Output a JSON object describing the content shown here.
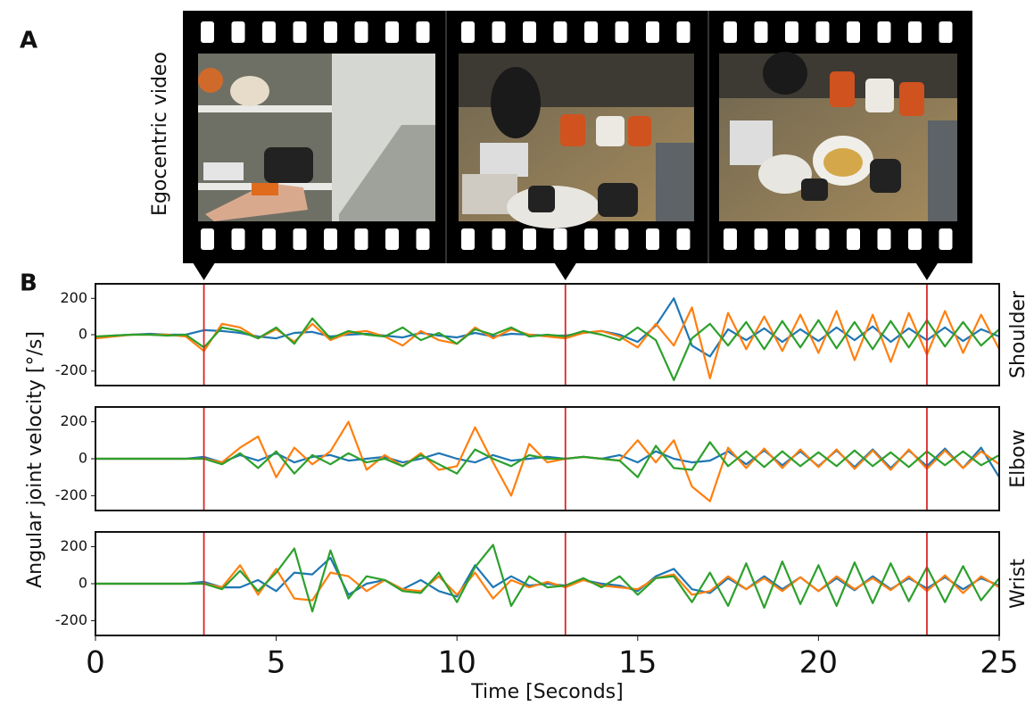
{
  "panel_labels": [
    "A",
    "B"
  ],
  "video_label": "Egocentric video",
  "ylabel": "Angular joint velocity [°/s]",
  "frame_times": [
    3,
    13,
    23
  ],
  "chart_data": [
    {
      "type": "line",
      "label": "Shoulder",
      "xlim": [
        0,
        25
      ],
      "ylim": [
        -280,
        280
      ],
      "yticks": [
        -200,
        0,
        200
      ],
      "x": [
        0,
        0.5,
        1,
        1.5,
        2,
        2.5,
        3,
        3.5,
        4,
        4.5,
        5,
        5.5,
        6,
        6.5,
        7,
        7.5,
        8,
        8.5,
        9,
        9.5,
        10,
        10.5,
        11,
        11.5,
        12,
        12.5,
        13,
        13.5,
        14,
        14.5,
        15,
        15.5,
        16,
        16.5,
        17,
        17.5,
        18,
        18.5,
        19,
        19.5,
        20,
        20.5,
        21,
        21.5,
        22,
        22.5,
        23,
        23.5,
        24,
        24.5,
        25
      ],
      "series": [
        {
          "color": "#1f77b4",
          "values": [
            -15,
            -5,
            0,
            5,
            0,
            0,
            25,
            20,
            10,
            -10,
            -20,
            10,
            15,
            -10,
            0,
            5,
            -5,
            -15,
            10,
            -5,
            -15,
            10,
            -10,
            5,
            0,
            -5,
            -5,
            10,
            20,
            0,
            -40,
            50,
            200,
            -60,
            -120,
            30,
            -30,
            35,
            -40,
            30,
            -35,
            40,
            -30,
            45,
            -40,
            35,
            -30,
            40,
            -35,
            30,
            -10
          ]
        },
        {
          "color": "#ff7f0e",
          "values": [
            -20,
            -10,
            0,
            0,
            0,
            -10,
            -90,
            60,
            40,
            -20,
            30,
            -40,
            60,
            -30,
            10,
            20,
            -10,
            -60,
            20,
            -30,
            -50,
            40,
            -20,
            30,
            0,
            -10,
            -20,
            10,
            20,
            -10,
            -70,
            60,
            -60,
            150,
            -240,
            120,
            -80,
            100,
            -90,
            110,
            -100,
            130,
            -140,
            110,
            -150,
            120,
            -110,
            130,
            -100,
            110,
            -80
          ]
        },
        {
          "color": "#2ca02c",
          "values": [
            -10,
            -5,
            0,
            0,
            -5,
            0,
            -70,
            40,
            20,
            -20,
            40,
            -50,
            90,
            -20,
            20,
            0,
            -10,
            40,
            -30,
            10,
            -50,
            30,
            0,
            40,
            -10,
            0,
            -10,
            20,
            0,
            -30,
            40,
            -30,
            -250,
            -20,
            60,
            -60,
            70,
            -80,
            75,
            -70,
            80,
            -75,
            70,
            -80,
            75,
            -70,
            80,
            -65,
            70,
            -60,
            30
          ]
        }
      ]
    },
    {
      "type": "line",
      "label": "Elbow",
      "xlim": [
        0,
        25
      ],
      "ylim": [
        -280,
        280
      ],
      "yticks": [
        -200,
        0,
        200
      ],
      "x": [
        0,
        0.5,
        1,
        1.5,
        2,
        2.5,
        3,
        3.5,
        4,
        4.5,
        5,
        5.5,
        6,
        6.5,
        7,
        7.5,
        8,
        8.5,
        9,
        9.5,
        10,
        10.5,
        11,
        11.5,
        12,
        12.5,
        13,
        13.5,
        14,
        14.5,
        15,
        15.5,
        16,
        16.5,
        17,
        17.5,
        18,
        18.5,
        19,
        19.5,
        20,
        20.5,
        21,
        21.5,
        22,
        22.5,
        23,
        23.5,
        24,
        24.5,
        25
      ],
      "series": [
        {
          "color": "#1f77b4",
          "values": [
            0,
            0,
            0,
            0,
            0,
            0,
            10,
            -20,
            20,
            -10,
            30,
            -20,
            10,
            20,
            -10,
            0,
            10,
            -20,
            0,
            30,
            0,
            -20,
            20,
            -10,
            0,
            10,
            0,
            10,
            0,
            20,
            -20,
            40,
            0,
            -20,
            -10,
            40,
            -30,
            45,
            -35,
            40,
            -40,
            45,
            -45,
            50,
            -50,
            45,
            -40,
            55,
            -50,
            60,
            -100
          ]
        },
        {
          "color": "#ff7f0e",
          "values": [
            0,
            0,
            0,
            0,
            0,
            0,
            0,
            -20,
            60,
            120,
            -100,
            60,
            -30,
            40,
            200,
            -60,
            20,
            -40,
            30,
            -60,
            -40,
            170,
            -20,
            -200,
            80,
            -20,
            0,
            10,
            0,
            -10,
            100,
            -20,
            100,
            -150,
            -230,
            60,
            -50,
            55,
            -50,
            50,
            -45,
            50,
            -55,
            45,
            -60,
            50,
            -55,
            45,
            -50,
            40,
            -30
          ]
        },
        {
          "color": "#2ca02c",
          "values": [
            0,
            0,
            0,
            0,
            0,
            0,
            0,
            -30,
            30,
            -50,
            40,
            -80,
            20,
            -30,
            30,
            -20,
            0,
            -40,
            20,
            -30,
            -80,
            50,
            0,
            -40,
            20,
            0,
            0,
            10,
            0,
            -10,
            -100,
            70,
            -50,
            -60,
            90,
            -40,
            40,
            -45,
            40,
            -40,
            35,
            -40,
            45,
            -40,
            35,
            -45,
            40,
            -35,
            40,
            -35,
            20
          ]
        }
      ]
    },
    {
      "type": "line",
      "label": "Wrist",
      "xlabel": "Time [Seconds]",
      "xlim": [
        0,
        25
      ],
      "ylim": [
        -280,
        280
      ],
      "yticks": [
        -200,
        0,
        200
      ],
      "xticks": [
        0,
        5,
        10,
        15,
        20,
        25
      ],
      "x": [
        0,
        0.5,
        1,
        1.5,
        2,
        2.5,
        3,
        3.5,
        4,
        4.5,
        5,
        5.5,
        6,
        6.5,
        7,
        7.5,
        8,
        8.5,
        9,
        9.5,
        10,
        10.5,
        11,
        11.5,
        12,
        12.5,
        13,
        13.5,
        14,
        14.5,
        15,
        15.5,
        16,
        16.5,
        17,
        17.5,
        18,
        18.5,
        19,
        19.5,
        20,
        20.5,
        21,
        21.5,
        22,
        22.5,
        23,
        23.5,
        24,
        24.5,
        25
      ],
      "series": [
        {
          "color": "#1f77b4",
          "values": [
            0,
            0,
            0,
            0,
            0,
            0,
            10,
            -20,
            -20,
            20,
            -40,
            60,
            50,
            140,
            -60,
            0,
            20,
            -30,
            20,
            -40,
            -70,
            100,
            -20,
            40,
            -10,
            0,
            -10,
            20,
            0,
            -10,
            -40,
            40,
            80,
            -30,
            -50,
            30,
            -30,
            40,
            -30,
            35,
            -40,
            30,
            -35,
            40,
            -30,
            30,
            -25,
            35,
            -30,
            30,
            -10
          ]
        },
        {
          "color": "#ff7f0e",
          "values": [
            0,
            0,
            0,
            0,
            0,
            0,
            0,
            -20,
            100,
            -60,
            80,
            -80,
            -90,
            60,
            40,
            -40,
            20,
            -30,
            -40,
            40,
            -60,
            60,
            -80,
            20,
            -20,
            10,
            -20,
            20,
            -10,
            -20,
            -30,
            30,
            50,
            -60,
            -40,
            40,
            -30,
            30,
            -40,
            35,
            -40,
            40,
            -30,
            30,
            -35,
            40,
            -40,
            45,
            -50,
            40,
            -20
          ]
        },
        {
          "color": "#2ca02c",
          "values": [
            0,
            0,
            0,
            0,
            0,
            0,
            0,
            -30,
            70,
            -40,
            60,
            190,
            -150,
            180,
            -80,
            40,
            20,
            -40,
            -50,
            60,
            -100,
            90,
            210,
            -120,
            40,
            -20,
            -10,
            30,
            -20,
            40,
            -60,
            30,
            40,
            -100,
            60,
            -120,
            110,
            -130,
            120,
            -110,
            100,
            -120,
            115,
            -105,
            110,
            -95,
            90,
            -100,
            95,
            -90,
            30
          ]
        }
      ]
    }
  ]
}
